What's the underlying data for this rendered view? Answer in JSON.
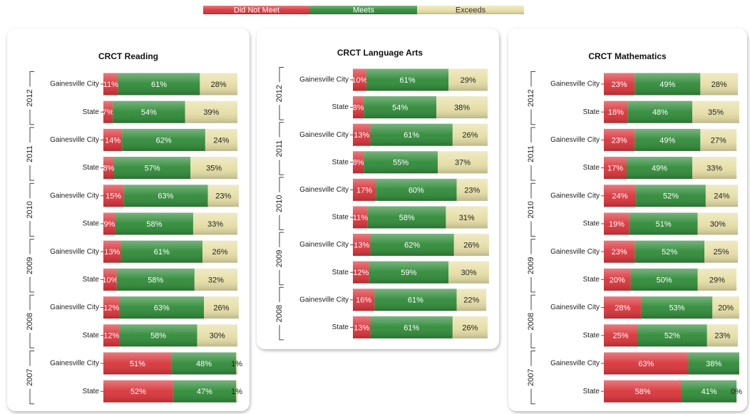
{
  "chart_data": [
    {
      "type": "stacked-bar",
      "title": "CRCT Reading",
      "xlim": [
        0,
        100
      ],
      "groups": [
        {
          "name": "2012",
          "categories": [
            "Gainesville City",
            "State"
          ]
        },
        {
          "name": "2011",
          "categories": [
            "Gainesville City",
            "State"
          ]
        },
        {
          "name": "2010",
          "categories": [
            "Gainesville City",
            "State"
          ]
        },
        {
          "name": "2009",
          "categories": [
            "Gainesville City",
            "State"
          ]
        },
        {
          "name": "2008",
          "categories": [
            "Gainesville City",
            "State"
          ]
        },
        {
          "name": "2007",
          "categories": [
            "Gainesville City",
            "State"
          ]
        }
      ],
      "series": [
        {
          "name": "Did Not Meet",
          "color": "#d8343a",
          "values": [
            11,
            7,
            14,
            8,
            15,
            9,
            13,
            10,
            12,
            12,
            51,
            52
          ],
          "value_labels": [
            "11%",
            "7%",
            "14%",
            "8%",
            "15%",
            "9%",
            "13%",
            "10%",
            "12%",
            "12%",
            "51%",
            "52%"
          ]
        },
        {
          "name": "Meets",
          "color": "#2f8a38",
          "values": [
            61,
            54,
            62,
            57,
            63,
            58,
            61,
            58,
            63,
            58,
            48,
            47
          ],
          "value_labels": [
            "61%",
            "54%",
            "62%",
            "57%",
            "63%",
            "58%",
            "61%",
            "58%",
            "63%",
            "58%",
            "48%",
            "47%"
          ]
        },
        {
          "name": "Exceeds",
          "color": "#e6dea6",
          "values": [
            28,
            39,
            24,
            35,
            23,
            33,
            26,
            32,
            26,
            30,
            1,
            1
          ],
          "value_labels": [
            "28%",
            "39%",
            "24%",
            "35%",
            "23%",
            "33%",
            "26%",
            "32%",
            "26%",
            "30%",
            "1%",
            "1%"
          ]
        }
      ]
    },
    {
      "type": "stacked-bar",
      "title": "CRCT Language Arts",
      "xlim": [
        0,
        100
      ],
      "groups": [
        {
          "name": "2012",
          "categories": [
            "Gainesville City",
            "State"
          ]
        },
        {
          "name": "2011",
          "categories": [
            "Gainesville City",
            "State"
          ]
        },
        {
          "name": "2010",
          "categories": [
            "Gainesville City",
            "State"
          ]
        },
        {
          "name": "2009",
          "categories": [
            "Gainesville City",
            "State"
          ]
        },
        {
          "name": "2008",
          "categories": [
            "Gainesville City",
            "State"
          ]
        }
      ],
      "series": [
        {
          "name": "Did Not Meet",
          "color": "#d8343a",
          "values": [
            10,
            8,
            13,
            8,
            17,
            11,
            13,
            12,
            16,
            13
          ],
          "value_labels": [
            "10%",
            "8%",
            "13%",
            "8%",
            "17%",
            "11%",
            "13%",
            "12%",
            "16%",
            "13%"
          ]
        },
        {
          "name": "Meets",
          "color": "#2f8a38",
          "values": [
            61,
            54,
            61,
            55,
            60,
            58,
            62,
            59,
            61,
            61
          ],
          "value_labels": [
            "61%",
            "54%",
            "61%",
            "55%",
            "60%",
            "58%",
            "62%",
            "59%",
            "61%",
            "61%"
          ]
        },
        {
          "name": "Exceeds",
          "color": "#e6dea6",
          "values": [
            29,
            38,
            26,
            37,
            23,
            31,
            26,
            30,
            22,
            26
          ],
          "value_labels": [
            "29%",
            "38%",
            "26%",
            "37%",
            "23%",
            "31%",
            "26%",
            "30%",
            "22%",
            "26%"
          ]
        }
      ]
    },
    {
      "type": "stacked-bar",
      "title": "CRCT Mathematics",
      "xlim": [
        0,
        100
      ],
      "groups": [
        {
          "name": "2012",
          "categories": [
            "Gainesville City",
            "State"
          ]
        },
        {
          "name": "2011",
          "categories": [
            "Gainesville City",
            "State"
          ]
        },
        {
          "name": "2010",
          "categories": [
            "Gainesville City",
            "State"
          ]
        },
        {
          "name": "2009",
          "categories": [
            "Gainesville City",
            "State"
          ]
        },
        {
          "name": "2008",
          "categories": [
            "Gainesville City",
            "State"
          ]
        },
        {
          "name": "2007",
          "categories": [
            "Gainesville City",
            "State"
          ]
        }
      ],
      "series": [
        {
          "name": "Did Not Meet",
          "color": "#d8343a",
          "values": [
            23,
            18,
            23,
            17,
            24,
            19,
            23,
            20,
            28,
            25,
            63,
            58
          ],
          "value_labels": [
            "23%",
            "18%",
            "23%",
            "17%",
            "24%",
            "19%",
            "23%",
            "20%",
            "28%",
            "25%",
            "63%",
            "58%"
          ]
        },
        {
          "name": "Meets",
          "color": "#2f8a38",
          "values": [
            49,
            48,
            49,
            49,
            52,
            51,
            52,
            50,
            53,
            52,
            38,
            41
          ],
          "value_labels": [
            "49%",
            "48%",
            "49%",
            "49%",
            "52%",
            "51%",
            "52%",
            "50%",
            "53%",
            "52%",
            "38%",
            "41%"
          ]
        },
        {
          "name": "Exceeds",
          "color": "#e6dea6",
          "values": [
            28,
            35,
            27,
            33,
            24,
            30,
            25,
            29,
            20,
            23,
            null,
            0
          ],
          "value_labels": [
            "28%",
            "35%",
            "27%",
            "33%",
            "24%",
            "30%",
            "25%",
            "29%",
            "20%",
            "23%",
            null,
            "0%"
          ]
        }
      ]
    }
  ]
}
